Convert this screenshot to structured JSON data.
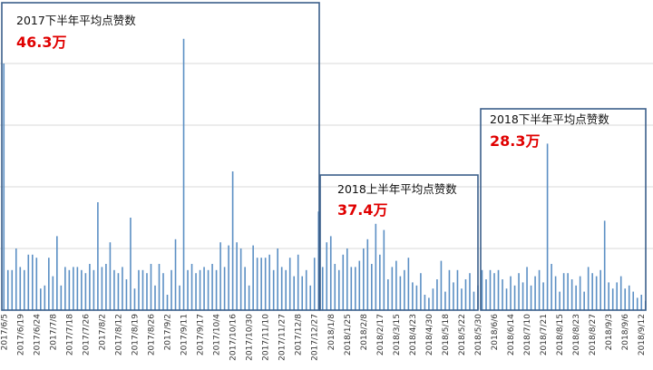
{
  "chart_data": {
    "type": "bar",
    "categories": [
      "2017/6/5",
      null,
      null,
      null,
      "2017/6/19",
      null,
      null,
      null,
      "2017/6/24",
      null,
      null,
      null,
      "2017/7/8",
      null,
      null,
      null,
      "2017/7/18",
      null,
      null,
      null,
      "2017/7/26",
      null,
      null,
      null,
      "2017/8/2",
      null,
      null,
      null,
      "2017/8/12",
      null,
      null,
      null,
      "2017/8/19",
      null,
      null,
      null,
      "2017/8/26",
      null,
      null,
      null,
      "2017/9/2",
      null,
      null,
      null,
      "2017/9/11",
      null,
      null,
      null,
      "2017/9/17",
      null,
      null,
      null,
      "2017/10/4",
      null,
      null,
      null,
      "2017/10/16",
      null,
      null,
      null,
      "2017/10/30",
      null,
      null,
      null,
      "2017/11/10",
      null,
      null,
      null,
      "2017/11/27",
      null,
      null,
      null,
      "2017/12/8",
      null,
      null,
      null,
      "2017/12/27",
      null,
      null,
      null,
      "2018/1/8",
      null,
      null,
      null,
      "2018/1/25",
      null,
      null,
      null,
      "2018/2/8",
      null,
      null,
      null,
      "2018/2/17",
      null,
      null,
      null,
      "2018/3/15",
      null,
      null,
      null,
      "2018/4/23",
      null,
      null,
      null,
      "2018/4/30",
      null,
      null,
      null,
      "2018/5/18",
      null,
      null,
      null,
      "2018/5/22",
      null,
      null,
      null,
      "2018/5/30",
      null,
      null,
      null,
      "2018/6/6",
      null,
      null,
      null,
      "2018/6/14",
      null,
      null,
      null,
      "2018/7/10",
      null,
      null,
      null,
      "2018/7/21",
      null,
      null,
      null,
      "2018/8/15",
      null,
      null,
      null,
      "2018/8/23",
      null,
      null,
      null,
      "2018/8/27",
      null,
      null,
      null,
      "2018/9/3",
      null,
      null,
      null,
      "2018/9/6",
      null,
      null,
      null,
      "2018/9/12",
      null
    ],
    "values": [
      80,
      13,
      13,
      20,
      14,
      13,
      18,
      18,
      17,
      7,
      8,
      17,
      11,
      24,
      8,
      14,
      13,
      14,
      14,
      13,
      12,
      15,
      13,
      35,
      14,
      15,
      22,
      13,
      12,
      14,
      10,
      30,
      7,
      13,
      13,
      12,
      15,
      8,
      15,
      12,
      5,
      13,
      23,
      8,
      88,
      13,
      15,
      12,
      13,
      14,
      13,
      15,
      13,
      22,
      14,
      21,
      45,
      22,
      20,
      14,
      8,
      21,
      17,
      17,
      17,
      18,
      13,
      20,
      14,
      13,
      17,
      11,
      18,
      11,
      13,
      8,
      17,
      32,
      14,
      22,
      24,
      15,
      13,
      18,
      20,
      14,
      14,
      16,
      20,
      23,
      15,
      28,
      18,
      26,
      10,
      14,
      16,
      11,
      13,
      17,
      9,
      8,
      12,
      5,
      4,
      7,
      10,
      16,
      6,
      13,
      9,
      13,
      7,
      10,
      12,
      6,
      8,
      13,
      10,
      13,
      12,
      13,
      10,
      7,
      11,
      8,
      12,
      9,
      14,
      8,
      11,
      13,
      9,
      54,
      15,
      11,
      6,
      12,
      12,
      10,
      8,
      11,
      6,
      14,
      12,
      11,
      13,
      29,
      9,
      7,
      9,
      11,
      7,
      8,
      6,
      4,
      5,
      3
    ],
    "color": "#5b8fc4",
    "ylim": [
      0,
      100
    ],
    "yticks": [
      20,
      40,
      60,
      80
    ],
    "grid": true,
    "annotations": [
      {
        "text": "2017下半年平均点赞数",
        "value": "46.3万"
      },
      {
        "text": "2018上半年平均点赞数",
        "value": "37.4万"
      },
      {
        "text": "2018下半年平均点赞数",
        "value": "28.3万"
      }
    ]
  }
}
